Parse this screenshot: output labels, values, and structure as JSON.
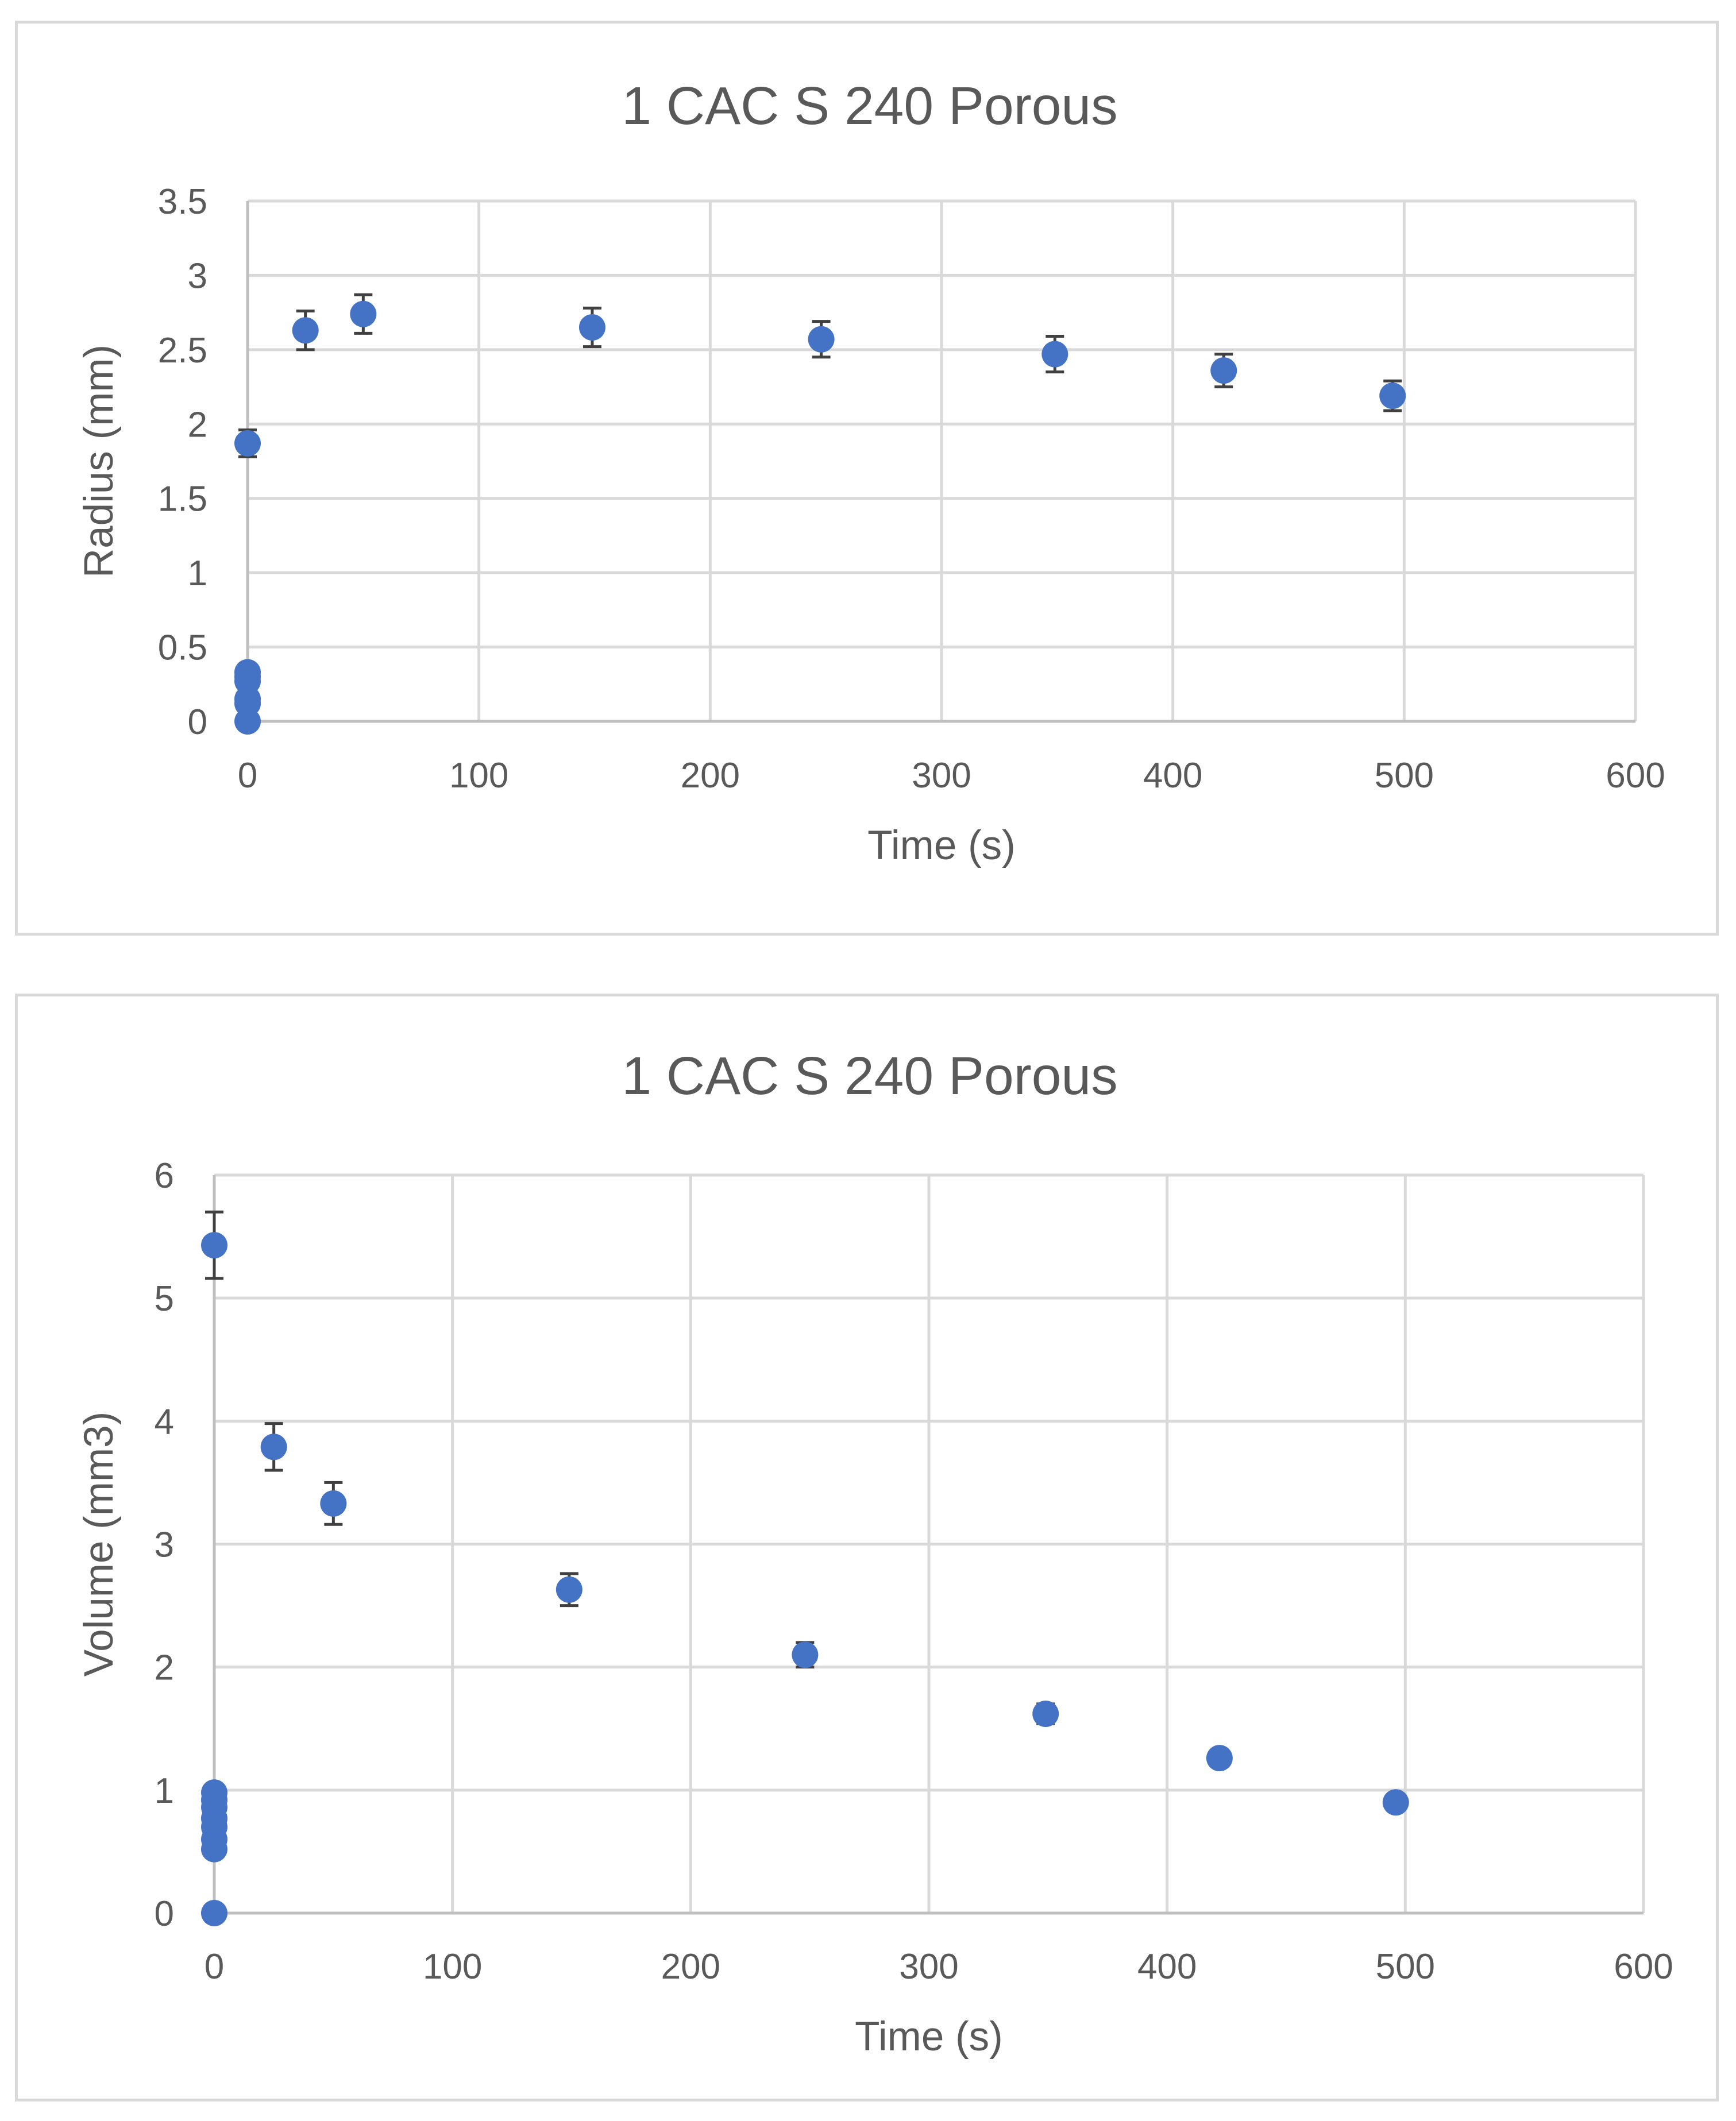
{
  "chart_data": [
    {
      "type": "scatter",
      "title": "1 CAC S 240 Porous",
      "xlabel": "Time (s)",
      "ylabel": "Radius (mm)",
      "xlim": [
        0,
        600
      ],
      "ylim": [
        0,
        3.5
      ],
      "x_ticks": [
        "0",
        "100",
        "200",
        "300",
        "400",
        "500",
        "600"
      ],
      "y_ticks": [
        "0",
        "0.5",
        "1",
        "1.5",
        "2",
        "2.5",
        "3",
        "3.5"
      ],
      "grid": true,
      "legend": "none",
      "marker_color": "#4472c4",
      "error_bar_color": "#404040",
      "series": [
        {
          "name": "Radius",
          "points": [
            {
              "x": 0,
              "y": 0.0
            },
            {
              "x": 0,
              "y": 0.12
            },
            {
              "x": 0,
              "y": 0.15
            },
            {
              "x": 0,
              "y": 0.27
            },
            {
              "x": 0,
              "y": 0.3
            },
            {
              "x": 0,
              "y": 0.33
            },
            {
              "x": 0,
              "y": 1.87,
              "err": 0.09
            },
            {
              "x": 25,
              "y": 2.63,
              "err": 0.13
            },
            {
              "x": 50,
              "y": 2.74,
              "err": 0.13
            },
            {
              "x": 149,
              "y": 2.65,
              "err": 0.13
            },
            {
              "x": 248,
              "y": 2.57,
              "err": 0.12
            },
            {
              "x": 349,
              "y": 2.47,
              "err": 0.12
            },
            {
              "x": 422,
              "y": 2.36,
              "err": 0.11
            },
            {
              "x": 495,
              "y": 2.19,
              "err": 0.1
            }
          ]
        }
      ]
    },
    {
      "type": "scatter",
      "title": "1 CAC S 240 Porous",
      "xlabel": "Time (s)",
      "ylabel": "Volume (mm3)",
      "xlim": [
        0,
        600
      ],
      "ylim": [
        0,
        6
      ],
      "x_ticks": [
        "0",
        "100",
        "200",
        "300",
        "400",
        "500",
        "600"
      ],
      "y_ticks": [
        "0",
        "1",
        "2",
        "3",
        "4",
        "5",
        "6"
      ],
      "grid": true,
      "legend": "none",
      "marker_color": "#4472c4",
      "error_bar_color": "#404040",
      "series": [
        {
          "name": "Volume",
          "points": [
            {
              "x": 0,
              "y": 0.0
            },
            {
              "x": 0,
              "y": 0.52
            },
            {
              "x": 0,
              "y": 0.6
            },
            {
              "x": 0,
              "y": 0.7
            },
            {
              "x": 0,
              "y": 0.77
            },
            {
              "x": 0,
              "y": 0.86
            },
            {
              "x": 0,
              "y": 0.92
            },
            {
              "x": 0,
              "y": 0.98
            },
            {
              "x": 0,
              "y": 5.43,
              "err": 0.27
            },
            {
              "x": 25,
              "y": 3.79,
              "err": 0.19
            },
            {
              "x": 50,
              "y": 3.33,
              "err": 0.17
            },
            {
              "x": 149,
              "y": 2.63,
              "err": 0.13
            },
            {
              "x": 248,
              "y": 2.1,
              "err": 0.1
            },
            {
              "x": 349,
              "y": 1.62,
              "err": 0.08
            },
            {
              "x": 422,
              "y": 1.26,
              "err": 0.06
            },
            {
              "x": 496,
              "y": 0.9,
              "err": 0.04
            }
          ]
        }
      ]
    }
  ]
}
